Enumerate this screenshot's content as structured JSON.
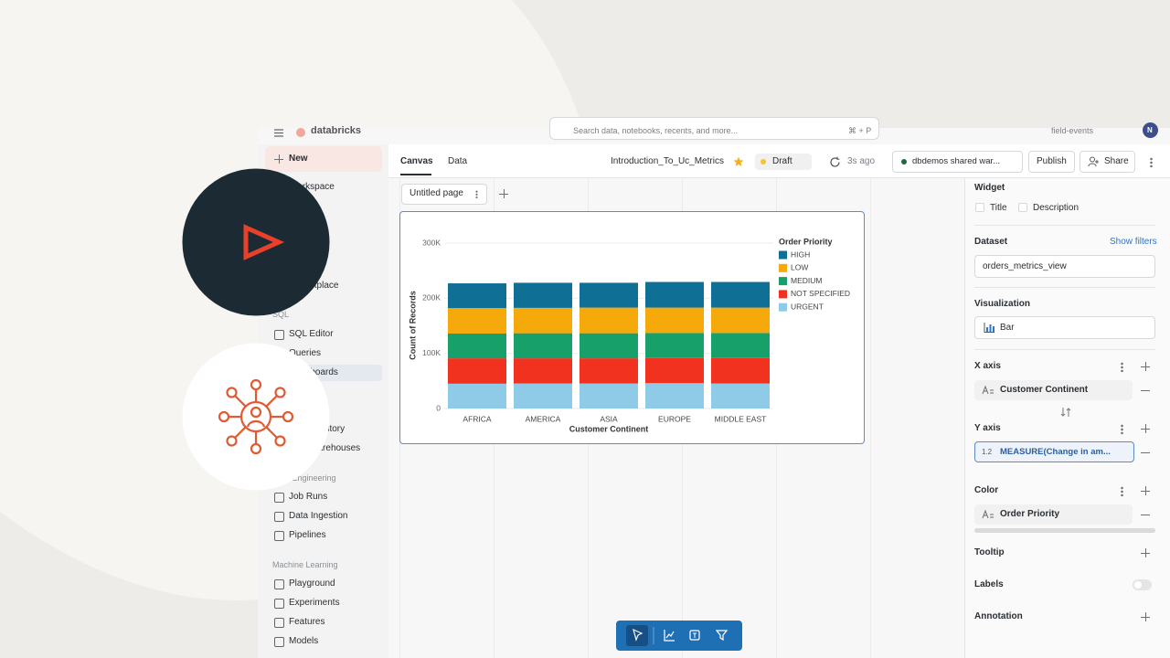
{
  "topbar": {
    "brand": "databricks",
    "search": "Search data, notebooks, recents, and more...",
    "shortcut": "⌘ + P",
    "workspace": "field-events",
    "avatar": "N"
  },
  "sidebar": {
    "new": "New",
    "top": [
      "Workspace",
      "Marketplace"
    ],
    "sections": [
      {
        "heading": "SQL",
        "items": [
          "SQL Editor",
          "Queries",
          "Dashboards",
          "Query History",
          "SQL Warehouses"
        ]
      },
      {
        "heading": "Data Engineering",
        "items": [
          "Job Runs",
          "Data Ingestion",
          "Pipelines"
        ]
      },
      {
        "heading": "Machine Learning",
        "items": [
          "Playground",
          "Experiments",
          "Features",
          "Models"
        ]
      }
    ]
  },
  "header": {
    "tabs": [
      "Canvas",
      "Data"
    ],
    "dashboard_title": "Introduction_To_Uc_Metrics",
    "status": "Draft",
    "saved": "3s ago",
    "warehouse": "dbdemos shared war...",
    "publish": "Publish",
    "share": "Share"
  },
  "page_tab": "Untitled page",
  "chart_data": {
    "type": "bar",
    "stacked": true,
    "categories": [
      "AFRICA",
      "AMERICA",
      "ASIA",
      "EUROPE",
      "MIDDLE EAST"
    ],
    "series": [
      {
        "name": "HIGH",
        "color": "#0f6f94",
        "values": [
          45000,
          45500,
          45000,
          46500,
          46500
        ]
      },
      {
        "name": "LOW",
        "color": "#f6a90b",
        "values": [
          46000,
          46000,
          46500,
          46000,
          46000
        ]
      },
      {
        "name": "MEDIUM",
        "color": "#17a06a",
        "values": [
          45000,
          45500,
          45500,
          45500,
          45500
        ]
      },
      {
        "name": "NOT SPECIFIED",
        "color": "#f0321f",
        "values": [
          46000,
          45500,
          45500,
          45500,
          46000
        ]
      },
      {
        "name": "URGENT",
        "color": "#8fcbe7",
        "values": [
          45000,
          45500,
          45500,
          46000,
          45500
        ]
      }
    ],
    "xlabel": "Customer Continent",
    "ylabel": "Count of Records",
    "legend_title": "Order Priority",
    "ylim": [
      0,
      300000
    ],
    "yticks": [
      0,
      {
        "value": 100000,
        "label": "100K"
      },
      {
        "value": 200000,
        "label": "200K"
      },
      {
        "value": 300000,
        "label": "300K"
      }
    ],
    "grid": true
  },
  "panel": {
    "widget": "Widget",
    "title_option": "Title",
    "description_option": "Description",
    "dataset_label": "Dataset",
    "show_filters": "Show filters",
    "dataset": "orders_metrics_view",
    "visualization_label": "Visualization",
    "visualization": "Bar",
    "x_axis_label": "X axis",
    "x_field": "Customer Continent",
    "y_axis_label": "Y axis",
    "y_field_type": "1.2",
    "y_field": "MEASURE(Change in am...",
    "color_label": "Color",
    "color_field": "Order Priority",
    "tooltip": "Tooltip",
    "labels": "Labels",
    "annotation": "Annotation"
  }
}
